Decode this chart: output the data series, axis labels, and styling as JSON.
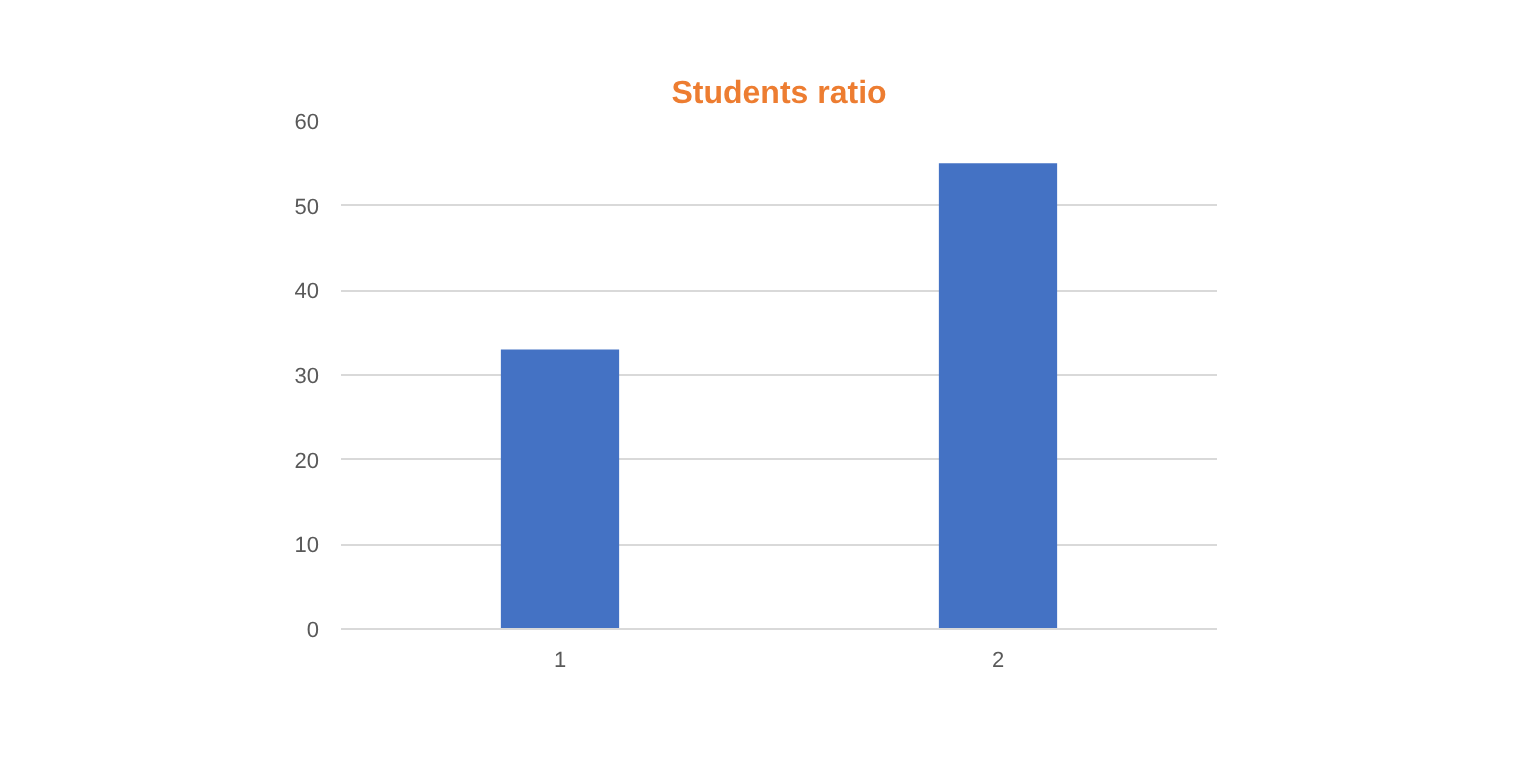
{
  "chart_data": {
    "type": "bar",
    "title": "Students ratio",
    "categories": [
      "1",
      "2"
    ],
    "values": [
      33,
      55
    ],
    "color": "#4472c4",
    "ylim": [
      0,
      60
    ],
    "yticks": [
      0,
      10,
      20,
      30,
      40,
      50,
      60
    ],
    "grid": "y"
  }
}
